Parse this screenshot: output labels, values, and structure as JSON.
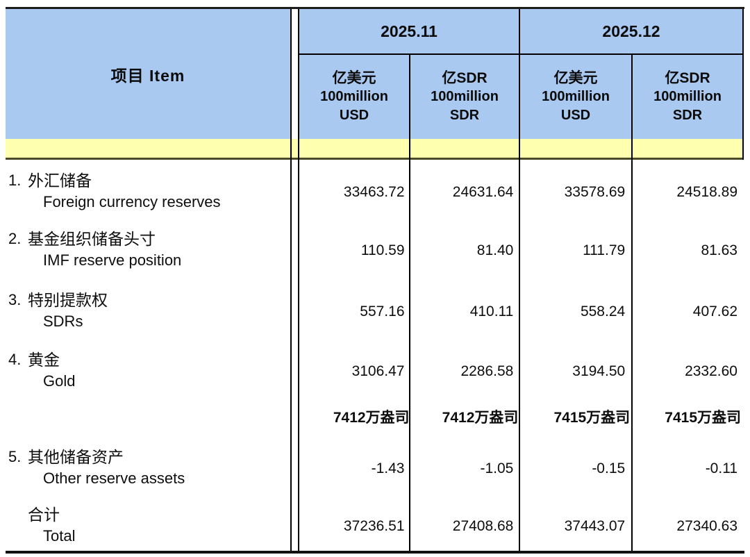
{
  "table": {
    "item_header": "项目 Item",
    "periods": [
      "2025.11",
      "2025.12"
    ],
    "unit_columns": [
      {
        "zh": "亿美元",
        "en1": "100million",
        "en2": "USD"
      },
      {
        "zh": "亿SDR",
        "en1": "100million",
        "en2": "SDR"
      },
      {
        "zh": "亿美元",
        "en1": "100million",
        "en2": "USD"
      },
      {
        "zh": "亿SDR",
        "en1": "100million",
        "en2": "SDR"
      }
    ],
    "rows": [
      {
        "num": "1.",
        "zh": "外汇储备",
        "en": "Foreign currency reserves",
        "values": [
          "33463.72",
          "24631.64",
          "33578.69",
          "24518.89"
        ]
      },
      {
        "num": "2.",
        "zh": "基金组织储备头寸",
        "en": "IMF reserve position",
        "values": [
          "110.59",
          "81.40",
          "111.79",
          "81.63"
        ]
      },
      {
        "num": "3.",
        "zh": "特别提款权",
        "en": "SDRs",
        "values": [
          "557.16",
          "410.11",
          "558.24",
          "407.62"
        ]
      },
      {
        "num": "4.",
        "zh": "黄金",
        "en": "Gold",
        "values": [
          "3106.47",
          "2286.58",
          "3194.50",
          "2332.60"
        ]
      },
      {
        "zh": "",
        "en": "",
        "values": [
          "7412万盎司",
          "7412万盎司",
          "7415万盎司",
          "7415万盎司"
        ]
      },
      {
        "num": "5.",
        "zh": "其他储备资产",
        "en": "Other reserve assets",
        "values": [
          "-1.43",
          "-1.05",
          "-0.15",
          "-0.11"
        ]
      },
      {
        "zh": "合计",
        "en": "Total",
        "values": [
          "37236.51",
          "27408.68",
          "37443.07",
          "27340.63"
        ]
      }
    ],
    "colors": {
      "header_blue": "#A9C9F0",
      "band_yellow": "#FFFFB0",
      "rule_dark": "#1C1C1C",
      "rule_olive": "#4A4A26"
    }
  }
}
